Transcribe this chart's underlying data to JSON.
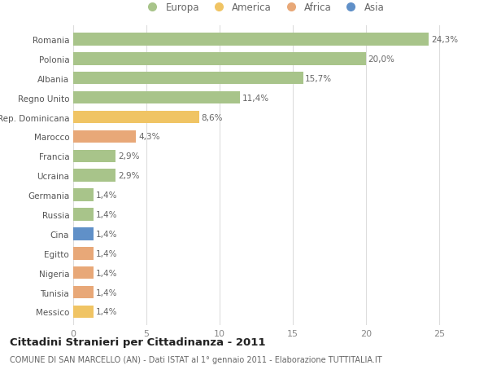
{
  "categories": [
    "Romania",
    "Polonia",
    "Albania",
    "Regno Unito",
    "Rep. Dominicana",
    "Marocco",
    "Francia",
    "Ucraina",
    "Germania",
    "Russia",
    "Cina",
    "Egitto",
    "Nigeria",
    "Tunisia",
    "Messico"
  ],
  "values": [
    24.3,
    20.0,
    15.7,
    11.4,
    8.6,
    4.3,
    2.9,
    2.9,
    1.4,
    1.4,
    1.4,
    1.4,
    1.4,
    1.4,
    1.4
  ],
  "labels": [
    "24,3%",
    "20,0%",
    "15,7%",
    "11,4%",
    "8,6%",
    "4,3%",
    "2,9%",
    "2,9%",
    "1,4%",
    "1,4%",
    "1,4%",
    "1,4%",
    "1,4%",
    "1,4%",
    "1,4%"
  ],
  "colors": [
    "#a8c48a",
    "#a8c48a",
    "#a8c48a",
    "#a8c48a",
    "#f0c464",
    "#e8a878",
    "#a8c48a",
    "#a8c48a",
    "#a8c48a",
    "#a8c48a",
    "#6090c8",
    "#e8a878",
    "#e8a878",
    "#e8a878",
    "#f0c464"
  ],
  "legend_labels": [
    "Europa",
    "America",
    "Africa",
    "Asia"
  ],
  "legend_colors": [
    "#a8c48a",
    "#f0c464",
    "#e8a878",
    "#6090c8"
  ],
  "xlim": [
    0,
    26
  ],
  "xticks": [
    0,
    5,
    10,
    15,
    20,
    25
  ],
  "title": "Cittadini Stranieri per Cittadinanza - 2011",
  "subtitle": "COMUNE DI SAN MARCELLO (AN) - Dati ISTAT al 1° gennaio 2011 - Elaborazione TUTTITALIA.IT",
  "bg_color": "#ffffff",
  "bar_height": 0.65,
  "label_fontsize": 7.5,
  "ytick_fontsize": 7.5,
  "xtick_fontsize": 8,
  "title_fontsize": 9.5,
  "subtitle_fontsize": 7,
  "legend_fontsize": 8.5,
  "legend_marker_size": 9
}
